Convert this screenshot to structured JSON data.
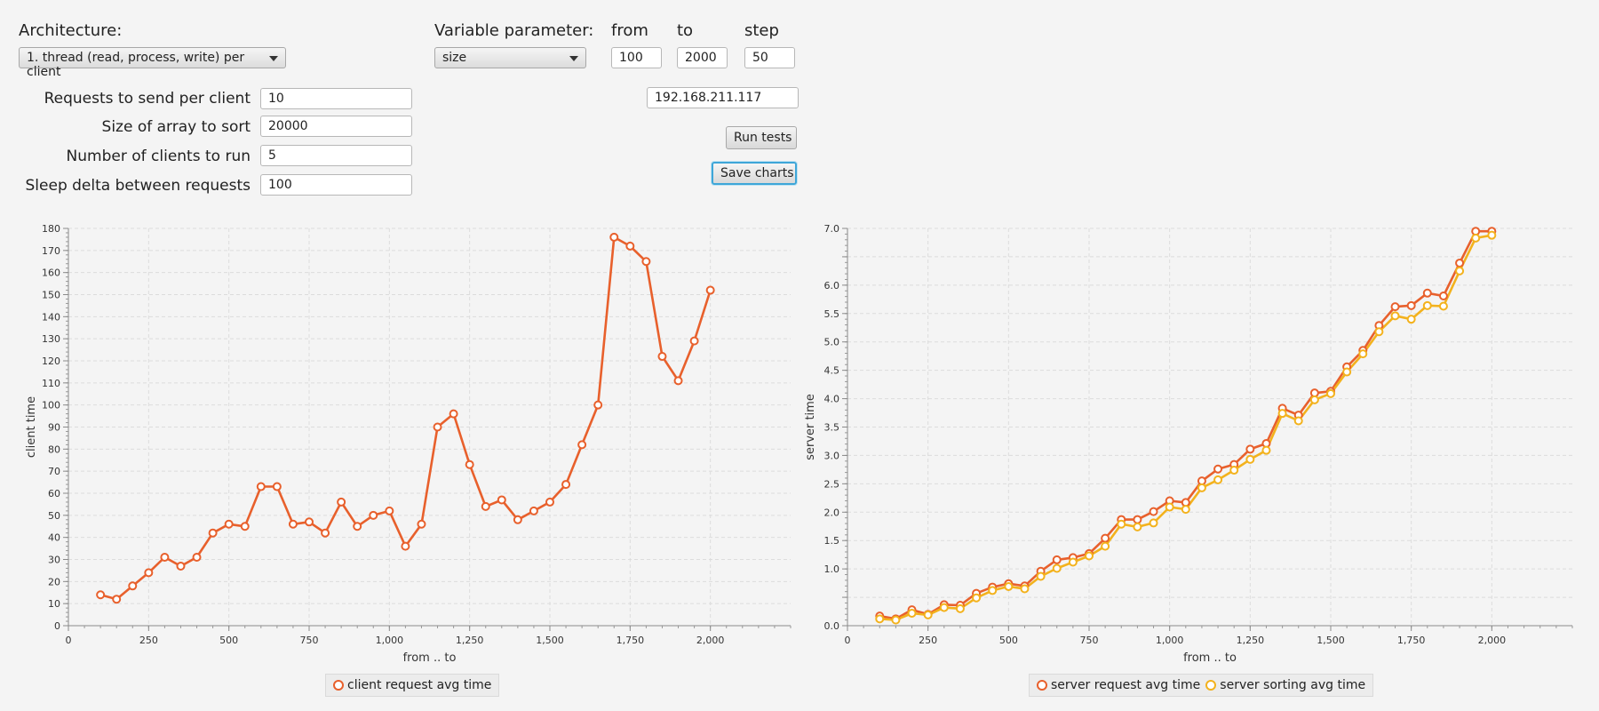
{
  "controls": {
    "architecture_label": "Architecture:",
    "architecture_value": "1. thread (read, process, write) per client",
    "variable_label": "Variable parameter:",
    "variable_value": "size",
    "from_label": "from",
    "to_label": "to",
    "step_label": "step",
    "from_value": "100",
    "to_value": "2000",
    "step_value": "50",
    "requests_label": "Requests to send per client",
    "requests_value": "10",
    "array_label": "Size of array to sort",
    "array_value": "20000",
    "clients_label": "Number of clients to run",
    "clients_value": "5",
    "sleep_label": "Sleep delta between requests",
    "sleep_value": "100",
    "ip_value": "192.168.211.117",
    "run_label": "Run tests",
    "save_label": "Save charts"
  },
  "colors": {
    "series1": "#e8602c",
    "series2": "#f3b21d",
    "grid": "#dcdcdc"
  },
  "chart_data": [
    {
      "type": "line",
      "xlabel": "from .. to",
      "ylabel": "client time",
      "xlim": [
        0,
        2250
      ],
      "ylim": [
        0,
        180
      ],
      "x_ticks": [
        0,
        250,
        500,
        750,
        1000,
        1250,
        1500,
        1750,
        2000
      ],
      "x_tick_labels": [
        "0",
        "250",
        "500",
        "750",
        "1,000",
        "1,250",
        "1,500",
        "1,750",
        "2,000"
      ],
      "y_ticks": [
        0,
        10,
        20,
        30,
        40,
        50,
        60,
        70,
        80,
        90,
        100,
        110,
        120,
        130,
        140,
        150,
        160,
        170,
        180
      ],
      "y_tick_labels": [
        "0",
        "10",
        "20",
        "30",
        "40",
        "50",
        "60",
        "70",
        "80",
        "90",
        "100",
        "110",
        "120",
        "130",
        "140",
        "150",
        "160",
        "170",
        "180"
      ],
      "grid": true,
      "legend_position": "bottom-center",
      "x": [
        100,
        150,
        200,
        250,
        300,
        350,
        400,
        450,
        500,
        550,
        600,
        650,
        700,
        750,
        800,
        850,
        900,
        950,
        1000,
        1050,
        1100,
        1150,
        1200,
        1250,
        1300,
        1350,
        1400,
        1450,
        1500,
        1550,
        1600,
        1650,
        1700,
        1750,
        1800,
        1850,
        1900,
        1950,
        2000
      ],
      "series": [
        {
          "name": "client request avg time",
          "values": [
            14,
            12,
            18,
            24,
            31,
            27,
            31,
            42,
            46,
            45,
            63,
            63,
            46,
            47,
            42,
            56,
            45,
            50,
            52,
            36,
            46,
            90,
            96,
            73,
            54,
            57,
            48,
            52,
            56,
            64,
            82,
            100,
            176,
            172,
            165,
            122,
            111,
            129,
            152
          ]
        }
      ]
    },
    {
      "type": "line",
      "xlabel": "from .. to",
      "ylabel": "server time",
      "xlim": [
        0,
        2250
      ],
      "ylim": [
        0,
        7
      ],
      "x_ticks": [
        0,
        250,
        500,
        750,
        1000,
        1250,
        1500,
        1750,
        2000
      ],
      "x_tick_labels": [
        "0",
        "250",
        "500",
        "750",
        "1,000",
        "1,250",
        "1,500",
        "1,750",
        "2,000"
      ],
      "y_ticks": [
        0,
        0.5,
        1,
        1.5,
        2,
        2.5,
        3,
        3.5,
        4,
        4.5,
        5,
        5.5,
        6,
        6.5,
        7
      ],
      "y_tick_labels": [
        "0.0",
        "",
        "1.0",
        "1.5",
        "2.0",
        "2.5",
        "3.0",
        "3.5",
        "4.0",
        "4.5",
        "5.0",
        "5.5",
        "6.0",
        "",
        "7.0"
      ],
      "grid": true,
      "legend_position": "bottom-center",
      "x": [
        100,
        150,
        200,
        250,
        300,
        350,
        400,
        450,
        500,
        550,
        600,
        650,
        700,
        750,
        800,
        850,
        900,
        950,
        1000,
        1050,
        1100,
        1150,
        1200,
        1250,
        1300,
        1350,
        1400,
        1450,
        1500,
        1550,
        1600,
        1650,
        1700,
        1750,
        1800,
        1850,
        1900,
        1950,
        2000
      ],
      "series": [
        {
          "name": "server request avg time",
          "values": [
            0.17,
            0.12,
            0.28,
            0.2,
            0.37,
            0.36,
            0.57,
            0.68,
            0.74,
            0.7,
            0.96,
            1.16,
            1.2,
            1.27,
            1.54,
            1.87,
            1.87,
            2.01,
            2.2,
            2.17,
            2.55,
            2.76,
            2.84,
            3.11,
            3.21,
            3.83,
            3.71,
            4.1,
            4.13,
            4.56,
            4.85,
            5.29,
            5.62,
            5.64,
            5.86,
            5.81,
            6.39,
            6.95,
            6.95
          ]
        },
        {
          "name": "server sorting avg time",
          "values": [
            0.12,
            0.1,
            0.22,
            0.19,
            0.32,
            0.3,
            0.49,
            0.62,
            0.69,
            0.65,
            0.87,
            1.01,
            1.12,
            1.23,
            1.4,
            1.79,
            1.74,
            1.81,
            2.09,
            2.05,
            2.43,
            2.57,
            2.74,
            2.93,
            3.09,
            3.74,
            3.61,
            3.98,
            4.09,
            4.47,
            4.79,
            5.18,
            5.46,
            5.4,
            5.64,
            5.63,
            6.25,
            6.83,
            6.88
          ]
        }
      ]
    }
  ]
}
